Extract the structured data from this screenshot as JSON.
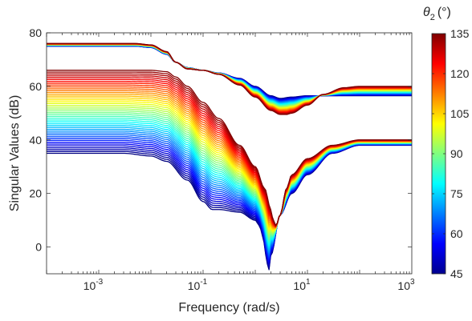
{
  "chart_data": {
    "type": "line",
    "xscale": "log",
    "xlabel": "Frequency (rad/s)",
    "ylabel": "Singular Values (dB)",
    "xlim": [
      0.0001,
      1000
    ],
    "ylim": [
      -10,
      80
    ],
    "xticks": [
      {
        "value": 0.001,
        "base": "10",
        "exp": "-3"
      },
      {
        "value": 0.1,
        "base": "10",
        "exp": "-1"
      },
      {
        "value": 10,
        "base": "10",
        "exp": "1"
      },
      {
        "value": 1000,
        "base": "10",
        "exp": "3"
      }
    ],
    "yticks": [
      {
        "value": 0,
        "label": "0"
      },
      {
        "value": 20,
        "label": "20"
      },
      {
        "value": 40,
        "label": "40"
      },
      {
        "value": 60,
        "label": "60"
      },
      {
        "value": 80,
        "label": "80"
      }
    ],
    "grid": false,
    "colormap": "jet",
    "colorbar": {
      "label_symbol": "θ",
      "label_subscript": "2",
      "label_unit": "(°)",
      "range": [
        45,
        135
      ],
      "ticks": [
        {
          "value": 45,
          "label": "45"
        },
        {
          "value": 60,
          "label": "60"
        },
        {
          "value": 75,
          "label": "75"
        },
        {
          "value": 90,
          "label": "90"
        },
        {
          "value": 105,
          "label": "105"
        },
        {
          "value": 120,
          "label": "120"
        },
        {
          "value": 135,
          "label": "135"
        }
      ]
    },
    "theta2_sweep": {
      "start": 45,
      "end": 135,
      "count": 46
    },
    "families": [
      {
        "name": "sigma1",
        "theta_45": {
          "x": [
            0.0001,
            0.001,
            0.005,
            0.01,
            0.02,
            0.03,
            0.05,
            0.1,
            0.2,
            0.5,
            1,
            2,
            3,
            5,
            10,
            20,
            50,
            100,
            1000
          ],
          "y": [
            75,
            75,
            75,
            74.5,
            72,
            69,
            67,
            66,
            65,
            63,
            60,
            56.5,
            55.5,
            56,
            56.5,
            56.5,
            56.5,
            56.5,
            56.5
          ]
        },
        "theta_135": {
          "x": [
            0.0001,
            0.001,
            0.005,
            0.01,
            0.02,
            0.03,
            0.05,
            0.1,
            0.2,
            0.5,
            1,
            2,
            3,
            4,
            5,
            10,
            20,
            50,
            100,
            1000
          ],
          "y": [
            76,
            76,
            76,
            75.5,
            73,
            69,
            66.5,
            66,
            64.5,
            60.5,
            56,
            51,
            49.5,
            49.5,
            50,
            53,
            57,
            59.5,
            60,
            60
          ]
        }
      },
      {
        "name": "sigma2",
        "theta_45": {
          "x": [
            0.0001,
            0.001,
            0.003,
            0.01,
            0.02,
            0.05,
            0.1,
            0.15,
            0.2,
            0.5,
            1,
            1.2,
            1.4,
            1.6,
            1.8,
            2,
            3,
            5,
            10,
            30,
            100,
            1000
          ],
          "y": [
            35,
            35,
            35,
            34,
            32,
            25,
            17,
            14,
            14,
            13,
            10,
            8,
            4,
            -3,
            -9,
            -3,
            12,
            20,
            27,
            35,
            38,
            38
          ]
        },
        "theta_135": {
          "x": [
            0.0001,
            0.001,
            0.005,
            0.01,
            0.02,
            0.03,
            0.05,
            0.1,
            0.2,
            0.5,
            1,
            1.5,
            2,
            2.2,
            2.5,
            3,
            4,
            5,
            10,
            30,
            100,
            1000
          ],
          "y": [
            66,
            66,
            66,
            66,
            65.5,
            63.5,
            60,
            54,
            48,
            38,
            30,
            22,
            14,
            10,
            8,
            12,
            22,
            27,
            33,
            38,
            40,
            40
          ]
        }
      }
    ]
  }
}
